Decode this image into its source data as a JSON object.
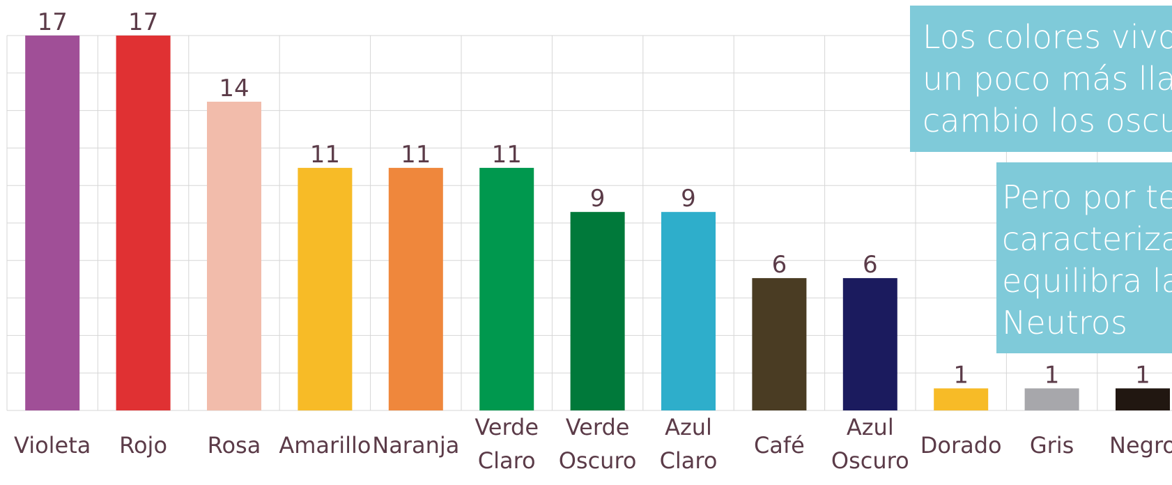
{
  "chart_data": {
    "type": "bar",
    "categories": [
      "Violeta",
      "Rojo",
      "Rosa",
      "Amarillo",
      "Naranja",
      "Verde Claro",
      "Verde Oscuro",
      "Azul Claro",
      "Café",
      "Azul Oscuro",
      "Dorado",
      "Gris",
      "Negro"
    ],
    "category_lines": [
      [
        "Violeta"
      ],
      [
        "Rojo"
      ],
      [
        "Rosa"
      ],
      [
        "Amarillo"
      ],
      [
        "Naranja"
      ],
      [
        "Verde",
        "Claro"
      ],
      [
        "Verde",
        "Oscuro"
      ],
      [
        "Azul",
        "Claro"
      ],
      [
        "Café"
      ],
      [
        "Azul",
        "Oscuro"
      ],
      [
        "Dorado"
      ],
      [
        "Gris"
      ],
      [
        "Negro"
      ]
    ],
    "values": [
      17,
      17,
      14,
      11,
      11,
      11,
      9,
      9,
      6,
      6,
      1,
      1,
      1
    ],
    "value_labels": [
      "17",
      "17",
      "14",
      "11",
      "11",
      "11",
      "9",
      "9",
      "6",
      "6",
      "1",
      "1",
      "1"
    ],
    "colors": [
      "#a04f97",
      "#e03133",
      "#f2bcab",
      "#f7bb27",
      "#ef873c",
      "#00984e",
      "#00793a",
      "#2eaecb",
      "#4a3c23",
      "#1b1b5e",
      "#f7bb27",
      "#a7a7ab",
      "#211711"
    ],
    "ylim": [
      0,
      10
    ],
    "grid": true,
    "label_color": "#5b3b48"
  },
  "callouts": [
    {
      "lines": [
        "Los colores vivos, brilla",
        "un poco más llamativos",
        "cambio los oscuros y n"
      ]
    },
    {
      "lines": [
        "Pero por tende",
        "caracterización",
        "equilibra la cole",
        "Neutros"
      ]
    }
  ]
}
